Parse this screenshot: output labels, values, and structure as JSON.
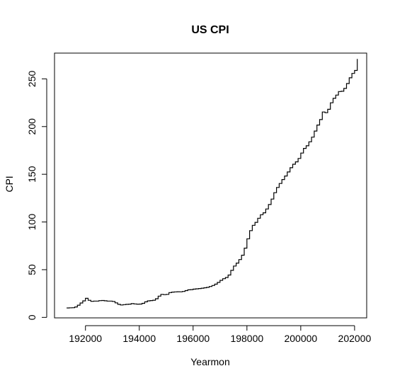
{
  "chart_data": {
    "type": "line",
    "line_style": "step",
    "title": "US CPI",
    "xlabel": "Yearmon",
    "ylabel": "CPI",
    "xlim": [
      190850,
      202450
    ],
    "ylim": [
      -0.5,
      277
    ],
    "xticks": [
      192000,
      194000,
      196000,
      198000,
      200000,
      202000
    ],
    "xtick_labels": [
      "192000",
      "194000",
      "196000",
      "198000",
      "200000",
      "202000"
    ],
    "yticks": [
      0,
      50,
      100,
      150,
      200,
      250
    ],
    "ytick_labels": [
      "0",
      "50",
      "100",
      "150",
      "200",
      "250"
    ],
    "grid": false,
    "series": [
      {
        "color": "#000000",
        "x": [
          191300,
          191400,
          191500,
          191600,
          191700,
          191800,
          191900,
          192000,
          192100,
          192200,
          192300,
          192400,
          192500,
          192600,
          192700,
          192800,
          192900,
          193000,
          193100,
          193200,
          193300,
          193400,
          193500,
          193600,
          193700,
          193800,
          193900,
          194000,
          194100,
          194200,
          194300,
          194400,
          194500,
          194600,
          194700,
          194800,
          194900,
          195000,
          195100,
          195200,
          195300,
          195400,
          195500,
          195600,
          195700,
          195800,
          195900,
          196000,
          196100,
          196200,
          196300,
          196400,
          196500,
          196600,
          196700,
          196800,
          196900,
          197000,
          197100,
          197200,
          197300,
          197400,
          197500,
          197600,
          197700,
          197800,
          197900,
          198000,
          198100,
          198200,
          198300,
          198400,
          198500,
          198600,
          198700,
          198800,
          198900,
          199000,
          199100,
          199200,
          199300,
          199400,
          199500,
          199600,
          199700,
          199800,
          199900,
          200000,
          200100,
          200200,
          200300,
          200400,
          200500,
          200600,
          200700,
          200800,
          200900,
          201000,
          201100,
          201200,
          201300,
          201400,
          201500,
          201600,
          201700,
          201800,
          201900,
          202000,
          202100
        ],
        "y": [
          9.9,
          10.0,
          10.1,
          10.9,
          12.8,
          15.1,
          17.3,
          20.0,
          17.9,
          16.8,
          17.1,
          17.1,
          17.5,
          17.7,
          17.4,
          17.1,
          17.1,
          16.7,
          15.2,
          13.7,
          13.0,
          13.4,
          13.7,
          13.9,
          14.4,
          14.1,
          13.9,
          14.0,
          14.7,
          16.3,
          17.3,
          17.6,
          18.0,
          19.5,
          22.3,
          24.1,
          23.8,
          24.1,
          26.0,
          26.5,
          26.7,
          26.9,
          26.8,
          27.2,
          28.1,
          28.9,
          29.1,
          29.6,
          29.9,
          30.2,
          30.6,
          31.0,
          31.5,
          32.4,
          33.4,
          34.8,
          36.7,
          38.8,
          40.5,
          41.8,
          44.4,
          49.3,
          53.8,
          56.9,
          60.6,
          65.2,
          72.6,
          82.4,
          90.9,
          96.5,
          99.6,
          103.9,
          107.6,
          109.6,
          113.6,
          118.3,
          124.0,
          130.7,
          136.2,
          140.3,
          144.5,
          148.2,
          152.4,
          156.9,
          160.5,
          163.0,
          166.6,
          172.2,
          177.1,
          179.9,
          184.0,
          188.9,
          195.3,
          201.6,
          207.3,
          215.3,
          214.5,
          218.1,
          224.9,
          229.6,
          233.0,
          236.7,
          237.0,
          240.0,
          245.1,
          251.1,
          255.7,
          258.8,
          270.9
        ]
      }
    ]
  }
}
